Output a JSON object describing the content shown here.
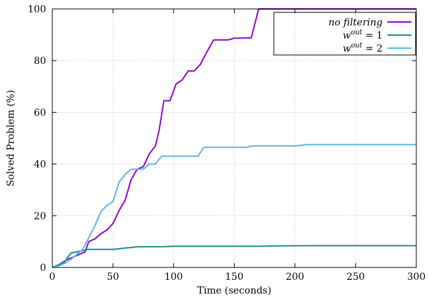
{
  "chart_data": {
    "type": "line",
    "xlabel": "Time (seconds)",
    "ylabel": "Solved Problem (%)",
    "xlim": [
      0,
      300
    ],
    "ylim": [
      0,
      100
    ],
    "xticks": [
      0,
      50,
      100,
      150,
      200,
      250,
      300
    ],
    "yticks": [
      0,
      20,
      40,
      60,
      80,
      100
    ],
    "grid": true,
    "legend_position": "top-right",
    "series": [
      {
        "name": "no filtering",
        "color": "#9400d3",
        "x": [
          0,
          3,
          7,
          12,
          17,
          22,
          27,
          30,
          35,
          40,
          45,
          50,
          55,
          60,
          65,
          70,
          75,
          80,
          85,
          88,
          92,
          97,
          102,
          107,
          112,
          117,
          122,
          127,
          133,
          140,
          145,
          150,
          155,
          160,
          164,
          170,
          175,
          300
        ],
        "y": [
          0,
          0.5,
          1.5,
          3,
          4,
          5,
          6,
          10,
          11,
          13,
          14.5,
          17,
          22,
          26,
          34,
          38,
          39,
          44,
          47,
          53,
          64.5,
          64.5,
          71,
          72.5,
          76,
          76,
          78.5,
          83,
          88,
          88,
          88,
          88.7,
          88.7,
          88.8,
          88.8,
          100,
          100,
          100
        ]
      },
      {
        "name": "w^out = 1",
        "color": "#1f8a8a",
        "x": [
          0,
          5,
          10,
          15,
          20,
          25,
          30,
          35,
          40,
          50,
          55,
          60,
          65,
          70,
          80,
          90,
          100,
          150,
          170,
          180,
          210,
          300
        ],
        "y": [
          0,
          1,
          2,
          5.5,
          6,
          6.5,
          7,
          7,
          7,
          7,
          7.2,
          7.5,
          7.7,
          8,
          8,
          8,
          8.2,
          8.2,
          8.2,
          8.3,
          8.4,
          8.4
        ]
      },
      {
        "name": "w^out = 2",
        "color": "#5eb4e8",
        "x": [
          0,
          5,
          10,
          15,
          20,
          25,
          30,
          35,
          40,
          45,
          50,
          55,
          60,
          65,
          70,
          75,
          80,
          85,
          90,
          95,
          100,
          110,
          120,
          125,
          130,
          140,
          150,
          160,
          165,
          180,
          200,
          210,
          300
        ],
        "y": [
          0,
          0.5,
          1.5,
          3,
          5,
          7,
          11.5,
          16,
          21.5,
          24,
          25.5,
          33,
          36,
          38,
          38,
          38,
          40,
          40,
          43,
          43,
          43,
          43,
          43,
          46.5,
          46.5,
          46.5,
          46.5,
          46.5,
          47,
          47,
          47,
          47.5,
          47.5
        ]
      }
    ]
  },
  "legend": {
    "entries": [
      {
        "prefix": "no filtering",
        "suffix": "",
        "italic": true
      },
      {
        "prefix": "w",
        "sup": "out",
        "suffix": " = 1",
        "italic": false
      },
      {
        "prefix": "w",
        "sup": "out",
        "suffix": " = 2",
        "italic": false
      }
    ]
  }
}
